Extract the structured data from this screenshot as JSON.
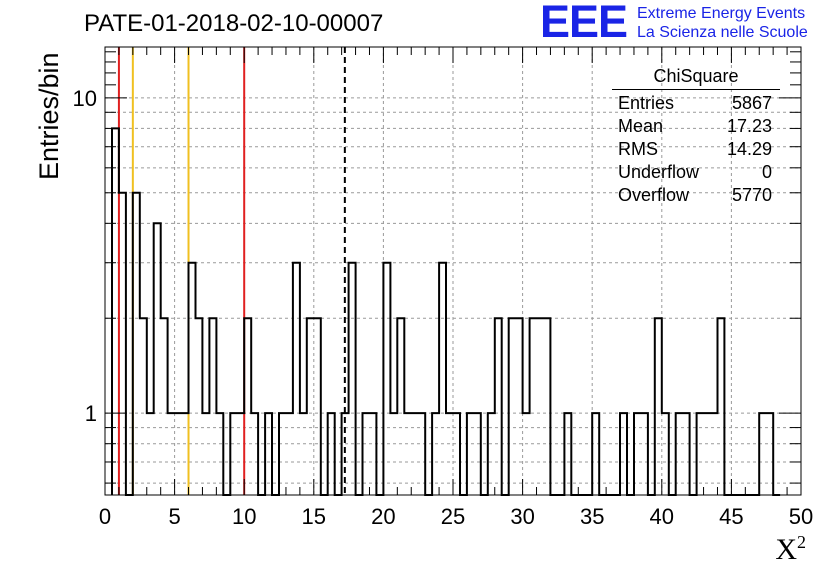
{
  "chart_data": {
    "type": "histogram",
    "title": "PATE-01-2018-02-10-00007",
    "xlabel": "X",
    "xlabel_sup": "2",
    "ylabel": "Entries/bin",
    "xlim": [
      0,
      50
    ],
    "ylim": [
      0.55,
      14.5
    ],
    "yscale": "log",
    "grid": true,
    "bin_width": 0.5,
    "bins_x": [
      0.5,
      1.0,
      1.5,
      2.0,
      2.5,
      3.0,
      3.5,
      4.0,
      4.5,
      5.0,
      5.5,
      6.0,
      6.5,
      7.0,
      7.5,
      8.0,
      8.5,
      9.0,
      9.5,
      10.0,
      10.5,
      11.0,
      11.5,
      12.0,
      12.5,
      13.0,
      13.5,
      14.0,
      14.5,
      15.0,
      15.5,
      16.0,
      16.5,
      17.0,
      17.5,
      18.0,
      18.5,
      19.0,
      19.5,
      20.0,
      20.5,
      21.0,
      21.5,
      22.0,
      22.5,
      23.0,
      23.5,
      24.0,
      24.5,
      25.0,
      25.5,
      26.0,
      26.5,
      27.0,
      27.5,
      28.0,
      28.5,
      29.0,
      29.5,
      30.0,
      30.5,
      31.0,
      31.5,
      32.0,
      32.5,
      33.0,
      33.5,
      34.0,
      34.5,
      35.0,
      35.5,
      36.0,
      36.5,
      37.0,
      37.5,
      38.0,
      38.5,
      39.0,
      39.5,
      40.0,
      40.5,
      41.0,
      41.5,
      42.0,
      42.5,
      43.0,
      43.5,
      44.0,
      44.5,
      45.0,
      45.5,
      46.0,
      46.5,
      47.0,
      47.5,
      48.0
    ],
    "bins_y": [
      8,
      5,
      0,
      5,
      2,
      1,
      4,
      2,
      1,
      1,
      1,
      3,
      2,
      1,
      2,
      1,
      0,
      1,
      1,
      2,
      1,
      0,
      1,
      0,
      1,
      1,
      3,
      1,
      2,
      2,
      0,
      1,
      0,
      1,
      3,
      0,
      1,
      1,
      0,
      3,
      1,
      2,
      1,
      1,
      1,
      0,
      1,
      3,
      1,
      1,
      0,
      1,
      1,
      0,
      1,
      2,
      0,
      2,
      2,
      1,
      2,
      2,
      2,
      0,
      0,
      1,
      0,
      0,
      0,
      1,
      0,
      0,
      0,
      1,
      0,
      1,
      1,
      0,
      2,
      1,
      0,
      1,
      1,
      0,
      1,
      1,
      1,
      2,
      0,
      0,
      0,
      0,
      0,
      1,
      1,
      0
    ],
    "x_ticks": [
      "0",
      "5",
      "10",
      "15",
      "20",
      "25",
      "30",
      "35",
      "40",
      "45",
      "50"
    ],
    "y_ticks": [
      "1",
      "10"
    ],
    "vertical_lines": [
      {
        "x": 1.0,
        "color": "#e02020",
        "style": "solid"
      },
      {
        "x": 2.0,
        "color": "#f0c020",
        "style": "solid"
      },
      {
        "x": 6.0,
        "color": "#f0c020",
        "style": "solid"
      },
      {
        "x": 10.0,
        "color": "#e02020",
        "style": "solid"
      },
      {
        "x": 17.23,
        "color": "#000000",
        "style": "dashed"
      }
    ],
    "stats": {
      "title": "ChiSquare",
      "rows": [
        {
          "label": "Entries",
          "value": "5867"
        },
        {
          "label": "Mean",
          "value": "17.23"
        },
        {
          "label": "RMS",
          "value": "14.29"
        },
        {
          "label": "Underflow",
          "value": "0"
        },
        {
          "label": "Overflow",
          "value": "5770"
        }
      ]
    }
  },
  "logo": {
    "mark": "EEE",
    "line1": "Extreme Energy Events",
    "line2": "La Scienza nelle Scuole",
    "color": "#1a24e6"
  }
}
